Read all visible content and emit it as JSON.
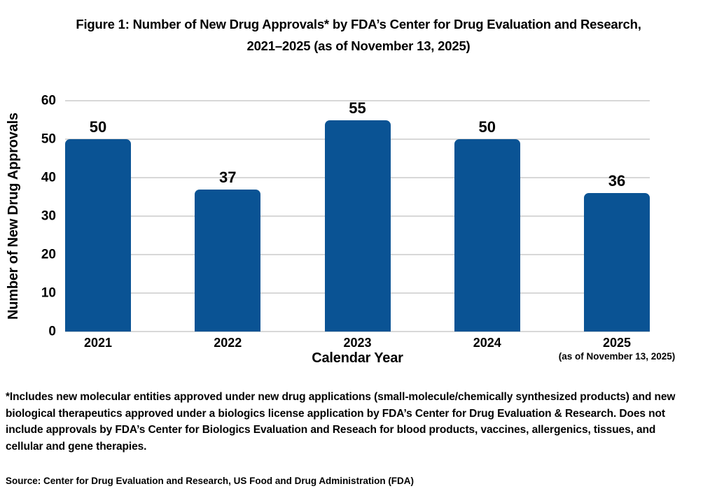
{
  "figure": {
    "title_line1": "Figure 1: Number of New Drug Approvals* by FDA’s Center for Drug Evaluation and Research,",
    "title_line2": "2021–2025 (as of November 13, 2025)",
    "footnote": "*Includes new molecular entities approved under new drug applications (small-molecule/chemically synthesized products) and new biological therapeutics approved under a biologics license application by FDA’s Center for Drug Evaluation & Research. Does not include approvals by FDA’s Center for Biologics Evaluation and Reseach for blood products, vaccines, allergenics, tissues, and cellular and gene therapies.",
    "source": "Source: Center for Drug Evaluation and Research, US Food and Drug Administration (FDA)"
  },
  "chart_data": {
    "type": "bar",
    "title": "Figure 1: Number of New Drug Approvals* by FDA’s Center for Drug Evaluation and Research, 2021–2025 (as of November 13, 2025)",
    "categories": [
      "2021",
      "2022",
      "2023",
      "2024",
      "2025"
    ],
    "values": [
      50,
      37,
      55,
      50,
      36
    ],
    "xlabel": "Calendar Year",
    "ylabel": "Number of New Drug Approvals",
    "ylim": [
      0,
      60
    ],
    "yticks": [
      0,
      10,
      20,
      30,
      40,
      50,
      60
    ],
    "grid": true,
    "legend_position": "none",
    "bar_color": "#0a5394",
    "gridline_color": "#d8d8d8",
    "text_color": "#000000",
    "last_category_note": "(as of November 13, 2025)"
  }
}
